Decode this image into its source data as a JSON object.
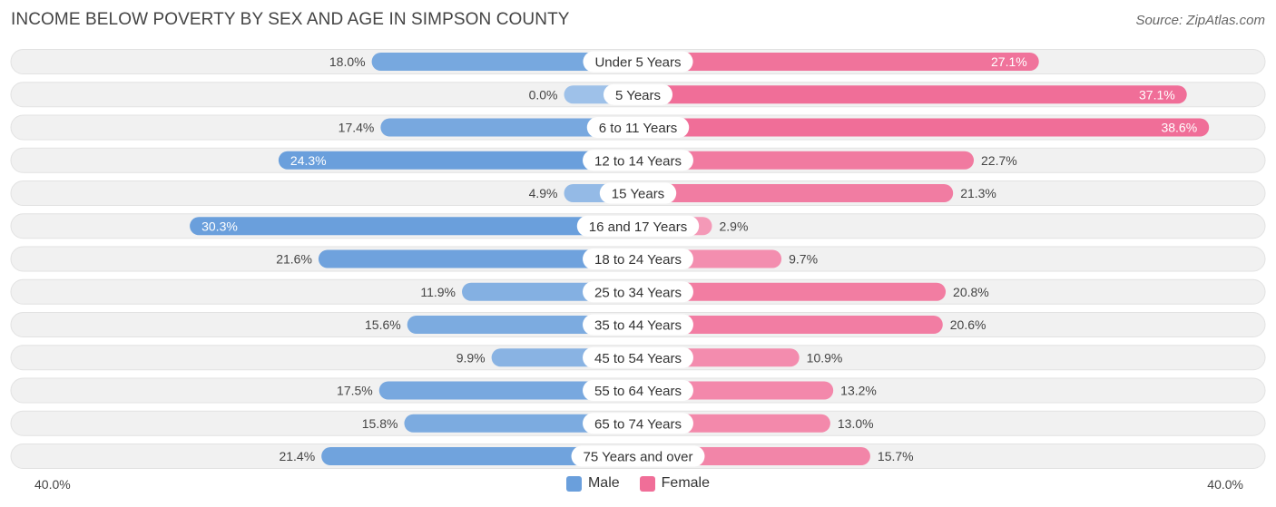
{
  "chart_data": {
    "type": "bar",
    "orientation": "horizontal-diverging",
    "title": "INCOME BELOW POVERTY BY SEX AND AGE IN SIMPSON COUNTY",
    "source": "Source: ZipAtlas.com",
    "categories": [
      "Under 5 Years",
      "5 Years",
      "6 to 11 Years",
      "12 to 14 Years",
      "15 Years",
      "16 and 17 Years",
      "18 to 24 Years",
      "25 to 34 Years",
      "35 to 44 Years",
      "45 to 54 Years",
      "55 to 64 Years",
      "65 to 74 Years",
      "75 Years and over"
    ],
    "series": [
      {
        "name": "Male",
        "values": [
          18.0,
          0.0,
          17.4,
          24.3,
          4.9,
          30.3,
          21.6,
          11.9,
          15.6,
          9.9,
          17.5,
          15.8,
          21.4
        ],
        "labels": [
          "18.0%",
          "0.0%",
          "17.4%",
          "24.3%",
          "4.9%",
          "30.3%",
          "21.6%",
          "11.9%",
          "15.6%",
          "9.9%",
          "17.5%",
          "15.8%",
          "21.4%"
        ]
      },
      {
        "name": "Female",
        "values": [
          27.1,
          37.1,
          38.6,
          22.7,
          21.3,
          2.9,
          9.7,
          20.8,
          20.6,
          10.9,
          13.2,
          13.0,
          15.7
        ],
        "labels": [
          "27.1%",
          "37.1%",
          "38.6%",
          "22.7%",
          "21.3%",
          "2.9%",
          "9.7%",
          "20.8%",
          "20.6%",
          "10.9%",
          "13.2%",
          "13.0%",
          "15.7%"
        ]
      }
    ],
    "axis_max": 40.0,
    "axis_left_label": "40.0%",
    "axis_right_label": "40.0%",
    "legend": [
      {
        "name": "Male",
        "color": "#6a9fdc"
      },
      {
        "name": "Female",
        "color": "#f06e98"
      }
    ],
    "legend_position": "bottom-center"
  }
}
